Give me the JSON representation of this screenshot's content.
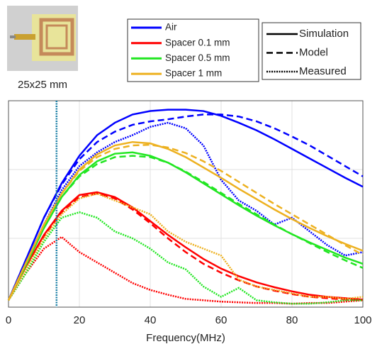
{
  "chart_data": {
    "type": "line",
    "image_caption": "25x25 mm",
    "x_label": "Frequency(MHz)",
    "x": [
      0,
      5,
      10,
      15,
      20,
      25,
      30,
      35,
      40,
      45,
      50,
      55,
      60,
      65,
      70,
      75,
      80,
      85,
      90,
      95,
      100
    ],
    "xlim": [
      0,
      100
    ],
    "xticks": [
      0,
      20,
      40,
      60,
      80,
      100
    ],
    "ylim": [
      0,
      3
    ],
    "yticks": [
      0,
      1,
      2,
      3
    ],
    "grid": true,
    "marker_line": {
      "x": 13.56,
      "color": "#1b7fa6"
    },
    "line_styles": [
      {
        "name": "Simulation",
        "dash": "solid"
      },
      {
        "name": "Model",
        "dash": "dashed"
      },
      {
        "name": "Measured",
        "dash": "dotted"
      }
    ],
    "series": [
      {
        "name": "Air",
        "color": "#0000ff",
        "lines": [
          [
            0.1,
            0.7,
            1.3,
            1.8,
            2.2,
            2.5,
            2.68,
            2.8,
            2.85,
            2.87,
            2.87,
            2.85,
            2.78,
            2.68,
            2.57,
            2.44,
            2.3,
            2.16,
            2.02,
            1.88,
            1.75
          ],
          [
            0.1,
            0.7,
            1.3,
            1.78,
            2.15,
            2.4,
            2.55,
            2.65,
            2.7,
            2.73,
            2.77,
            2.8,
            2.8,
            2.77,
            2.7,
            2.6,
            2.48,
            2.35,
            2.2,
            2.05,
            1.9
          ],
          [
            0.1,
            0.65,
            1.2,
            1.7,
            2.05,
            2.25,
            2.4,
            2.5,
            2.62,
            2.68,
            2.6,
            2.35,
            1.85,
            1.55,
            1.4,
            1.2,
            1.3,
            1.1,
            0.9,
            0.75,
            0.8
          ]
        ]
      },
      {
        "name": "Spacer 0.1 mm",
        "color": "#ff0000",
        "lines": [
          [
            0.1,
            0.6,
            1.05,
            1.4,
            1.63,
            1.67,
            1.6,
            1.45,
            1.25,
            1.05,
            0.87,
            0.7,
            0.56,
            0.45,
            0.36,
            0.29,
            0.23,
            0.18,
            0.15,
            0.13,
            0.11
          ],
          [
            0.1,
            0.6,
            1.03,
            1.38,
            1.6,
            1.65,
            1.58,
            1.42,
            1.22,
            1.0,
            0.8,
            0.63,
            0.5,
            0.39,
            0.3,
            0.24,
            0.19,
            0.15,
            0.13,
            0.11,
            0.1
          ],
          [
            0.1,
            0.5,
            0.85,
            1.02,
            0.8,
            0.65,
            0.5,
            0.35,
            0.25,
            0.18,
            0.12,
            0.1,
            0.08,
            0.07,
            0.06,
            0.06,
            0.05,
            0.06,
            0.06,
            0.08,
            0.1
          ]
        ]
      },
      {
        "name": "Spacer 0.5 mm",
        "color": "#22e622",
        "lines": [
          [
            0.1,
            0.62,
            1.15,
            1.6,
            1.92,
            2.12,
            2.23,
            2.25,
            2.2,
            2.1,
            1.96,
            1.8,
            1.64,
            1.48,
            1.33,
            1.19,
            1.06,
            0.94,
            0.83,
            0.72,
            0.63
          ],
          [
            0.1,
            0.62,
            1.15,
            1.6,
            1.9,
            2.08,
            2.18,
            2.2,
            2.18,
            2.1,
            1.97,
            1.82,
            1.66,
            1.5,
            1.35,
            1.2,
            1.06,
            0.93,
            0.8,
            0.68,
            0.57
          ],
          [
            0.1,
            0.5,
            0.95,
            1.3,
            1.38,
            1.3,
            1.1,
            1.0,
            0.85,
            0.65,
            0.55,
            0.3,
            0.15,
            0.28,
            0.1,
            0.07,
            0.05,
            0.05,
            0.07,
            0.1,
            0.1
          ]
        ]
      },
      {
        "name": "Spacer 1 mm",
        "color": "#edb120",
        "lines": [
          [
            0.1,
            0.65,
            1.2,
            1.65,
            2.0,
            2.22,
            2.35,
            2.4,
            2.38,
            2.3,
            2.18,
            2.03,
            1.88,
            1.72,
            1.57,
            1.42,
            1.28,
            1.15,
            1.03,
            0.92,
            0.82
          ],
          [
            0.1,
            0.65,
            1.2,
            1.65,
            1.98,
            2.18,
            2.3,
            2.35,
            2.36,
            2.32,
            2.24,
            2.12,
            1.98,
            1.82,
            1.66,
            1.5,
            1.35,
            1.2,
            1.05,
            0.9,
            0.76
          ],
          [
            0.1,
            0.55,
            1.0,
            1.35,
            1.58,
            1.65,
            1.55,
            1.45,
            1.35,
            1.1,
            0.95,
            0.85,
            0.75,
            0.4,
            0.3,
            0.25,
            0.2,
            0.15,
            0.15,
            0.12,
            0.15
          ]
        ]
      }
    ]
  }
}
